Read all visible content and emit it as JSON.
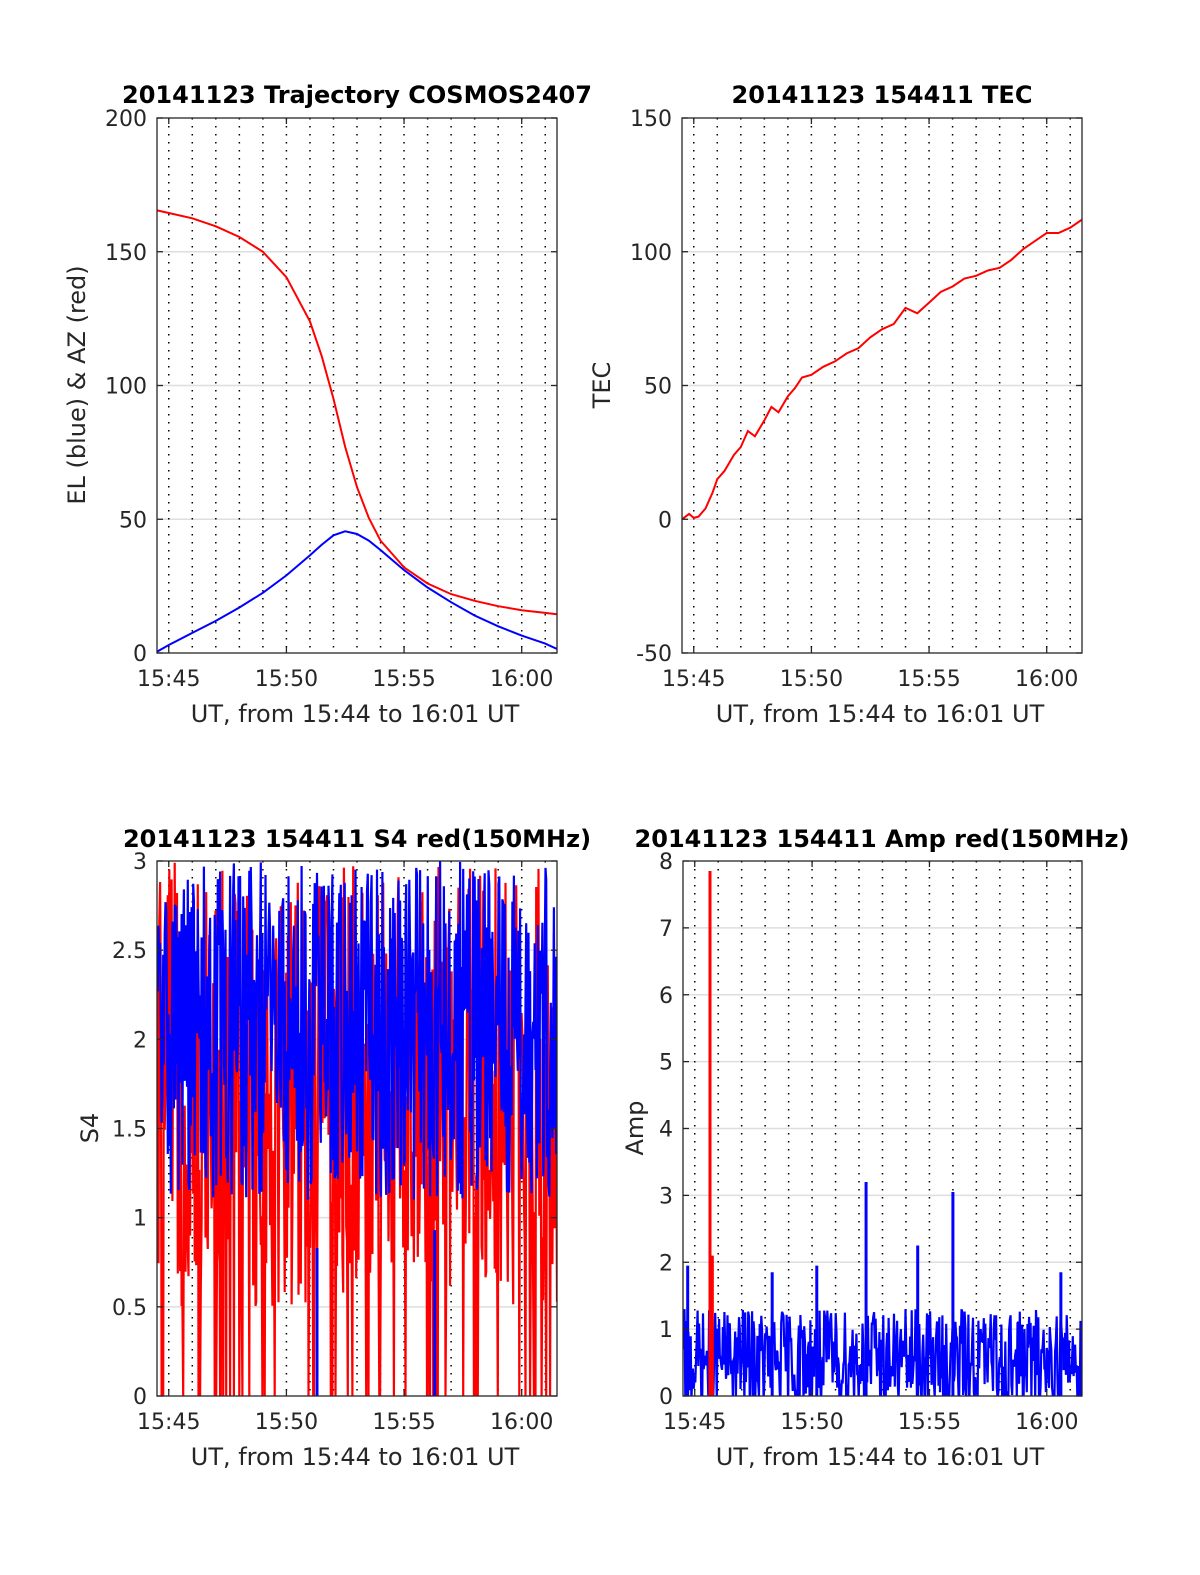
{
  "figure": {
    "background": "#ffffff"
  },
  "chart_data": [
    {
      "id": "traj",
      "type": "line",
      "title": "20141123 Trajectory COSMOS2407",
      "xlabel": "UT, from 15:44 to 16:01 UT",
      "ylabel": "EL (blue) & AZ (red)",
      "x_unit": "minutes after 15:44 UT",
      "xlim": [
        0.5,
        17.5
      ],
      "ylim": [
        0,
        200
      ],
      "xticks": [
        1,
        6,
        11,
        16
      ],
      "xticklabels": [
        "15:45",
        "15:50",
        "15:55",
        "16:00"
      ],
      "yticks": [
        0,
        50,
        100,
        150,
        200
      ],
      "yticklabels": [
        "0",
        "50",
        "100",
        "150",
        "200"
      ],
      "vlines": [
        1,
        2,
        3,
        4,
        5,
        6,
        7,
        8,
        9,
        10,
        11,
        12,
        13,
        14,
        15,
        16,
        17
      ],
      "hgrid": [
        50,
        100,
        150
      ],
      "series": [
        {
          "color": "#ff0000",
          "x": [
            0.5,
            1,
            2,
            3,
            4,
            5,
            6,
            7,
            7.5,
            8,
            8.5,
            9,
            9.5,
            10,
            11,
            12,
            13,
            14,
            15,
            16,
            17,
            17.5
          ],
          "y": [
            165.5,
            164.5,
            162.5,
            159.5,
            155.5,
            150,
            140.5,
            124,
            111,
            95,
            77,
            62,
            50.5,
            42,
            32,
            26,
            22,
            19.5,
            17.5,
            16,
            15,
            14.5
          ]
        },
        {
          "color": "#0000ff",
          "x": [
            0.5,
            1,
            2,
            3,
            4,
            5,
            6,
            7,
            7.5,
            8,
            8.5,
            9,
            9.5,
            10,
            11,
            12,
            13,
            14,
            15,
            16,
            17,
            17.5
          ],
          "y": [
            0.5,
            3,
            7.5,
            12,
            17,
            22.5,
            29,
            36.5,
            40.5,
            44,
            45.5,
            44.5,
            42,
            38.5,
            31,
            24.5,
            19,
            14,
            10,
            6.5,
            3.5,
            1.5
          ]
        }
      ]
    },
    {
      "id": "tec",
      "type": "line",
      "title": "20141123 154411 TEC",
      "xlabel": "UT, from 15:44 to 16:01 UT",
      "ylabel": "TEC",
      "x_unit": "minutes after 15:44 UT",
      "xlim": [
        0.5,
        17.5
      ],
      "ylim": [
        -50,
        150
      ],
      "xticks": [
        1,
        6,
        11,
        16
      ],
      "xticklabels": [
        "15:45",
        "15:50",
        "15:55",
        "16:00"
      ],
      "yticks": [
        -50,
        0,
        50,
        100,
        150
      ],
      "yticklabels": [
        "-50",
        "0",
        "50",
        "100",
        "150"
      ],
      "vlines": [
        1,
        2,
        3,
        4,
        5,
        6,
        7,
        8,
        9,
        10,
        11,
        12,
        13,
        14,
        15,
        16,
        17
      ],
      "hgrid": [
        0,
        50,
        100
      ],
      "series": [
        {
          "color": "#ff0000",
          "x": [
            0.5,
            0.8,
            1,
            1.2,
            1.5,
            1.8,
            2,
            2.3,
            2.7,
            3,
            3.3,
            3.6,
            4,
            4.3,
            4.6,
            5,
            5.3,
            5.6,
            6,
            6.5,
            7,
            7.5,
            8,
            8.5,
            9,
            9.5,
            10,
            10.5,
            11,
            11.5,
            12,
            12.5,
            13,
            13.5,
            14,
            14.5,
            15,
            15.5,
            16,
            16.5,
            17,
            17.5
          ],
          "y": [
            0,
            2,
            0.5,
            1,
            4,
            10,
            15,
            18,
            24,
            27,
            33,
            31,
            37,
            42,
            40,
            46,
            49,
            53,
            54,
            57,
            59,
            62,
            64,
            68,
            71,
            73,
            79,
            77,
            81,
            85,
            87,
            90,
            91,
            93,
            94,
            97,
            101,
            104,
            107,
            107,
            109,
            112
          ]
        }
      ]
    },
    {
      "id": "s4",
      "type": "line",
      "title": "20141123 154411 S4 red(150MHz)",
      "xlabel": "UT, from 15:44 to 16:01 UT",
      "ylabel": "S4",
      "x_unit": "minutes after 15:44 UT",
      "xlim": [
        0.5,
        17.5
      ],
      "ylim": [
        0,
        3
      ],
      "xticks": [
        1,
        6,
        11,
        16
      ],
      "xticklabels": [
        "15:45",
        "15:50",
        "15:55",
        "16:00"
      ],
      "yticks": [
        0,
        0.5,
        1,
        1.5,
        2,
        2.5,
        3
      ],
      "yticklabels": [
        "0",
        "0.5",
        "1",
        "1.5",
        "2",
        "2.5",
        "3"
      ],
      "vlines": [
        1,
        2,
        3,
        4,
        5,
        6,
        7,
        8,
        9,
        10,
        11,
        12,
        13,
        14,
        15,
        16,
        17
      ],
      "hgrid": [
        0.5,
        1,
        1.5,
        2,
        2.5
      ],
      "noise": [
        {
          "color": "#ff0000",
          "base": 1.75,
          "spread": 1.25,
          "dropouts": 0.12
        },
        {
          "color": "#0000ff",
          "base": 2.05,
          "spread": 0.95,
          "dropouts": 0
        }
      ],
      "spikes": [
        {
          "color": "#0000ff",
          "x": 7.3,
          "value": 0.83
        },
        {
          "color": "#0000ff",
          "x": 12.3,
          "value": 0.93
        }
      ]
    },
    {
      "id": "amp",
      "type": "line",
      "title": "20141123 154411 Amp red(150MHz)",
      "xlabel": "UT, from 15:44 to 16:01 UT",
      "ylabel": "Amp",
      "x_unit": "minutes after 15:44 UT",
      "xlim": [
        0.5,
        17.5
      ],
      "ylim": [
        0,
        8
      ],
      "xticks": [
        1,
        6,
        11,
        16
      ],
      "xticklabels": [
        "15:45",
        "15:50",
        "15:55",
        "16:00"
      ],
      "yticks": [
        0,
        1,
        2,
        3,
        4,
        5,
        6,
        7,
        8
      ],
      "yticklabels": [
        "0",
        "1",
        "2",
        "3",
        "4",
        "5",
        "6",
        "7",
        "8"
      ],
      "vlines": [
        1,
        2,
        3,
        4,
        5,
        6,
        7,
        8,
        9,
        10,
        11,
        12,
        13,
        14,
        15,
        16,
        17
      ],
      "hgrid": [
        1,
        2,
        3,
        4,
        5,
        6,
        7
      ],
      "noise": [
        {
          "color": "#0000ff",
          "base": 0.55,
          "spread": 0.75,
          "dropouts": 0
        }
      ],
      "spikes": [
        {
          "color": "#ff0000",
          "x": 1.65,
          "value": 7.85
        },
        {
          "color": "#ff0000",
          "x": 1.75,
          "value": 2.1
        },
        {
          "color": "#0000ff",
          "x": 8.3,
          "value": 3.2
        },
        {
          "color": "#0000ff",
          "x": 10.5,
          "value": 2.25
        },
        {
          "color": "#0000ff",
          "x": 12.0,
          "value": 3.05
        },
        {
          "color": "#0000ff",
          "x": 0.7,
          "value": 1.95
        },
        {
          "color": "#0000ff",
          "x": 4.3,
          "value": 1.85
        },
        {
          "color": "#0000ff",
          "x": 6.2,
          "value": 1.95
        },
        {
          "color": "#0000ff",
          "x": 16.6,
          "value": 1.85
        }
      ]
    }
  ]
}
